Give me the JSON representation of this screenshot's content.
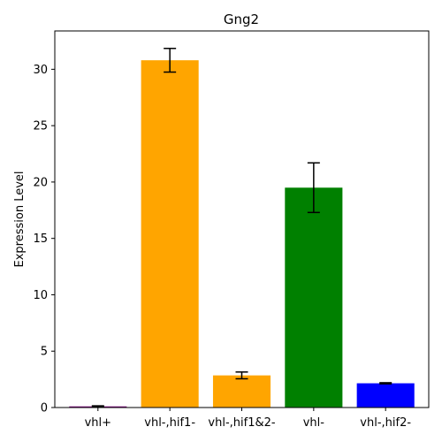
{
  "chart_data": {
    "type": "bar",
    "title": "Gng2",
    "xlabel": "",
    "ylabel": "Expression Level",
    "categories": [
      "vhl+",
      "vhl-,hif1-",
      "vhl-,hif1&2-",
      "vhl-",
      "vhl-,hif2-"
    ],
    "values": [
      0.1,
      30.8,
      2.85,
      19.5,
      2.15
    ],
    "errors": [
      0.05,
      1.05,
      0.3,
      2.2,
      0.05
    ],
    "bar_colors": [
      "#800080",
      "#ffa500",
      "#ffa500",
      "#008000",
      "#0000ff"
    ],
    "ylim": [
      0,
      33.4
    ],
    "yticks": [
      0,
      5,
      10,
      15,
      20,
      25,
      30
    ],
    "grid": false,
    "legend": "none"
  }
}
